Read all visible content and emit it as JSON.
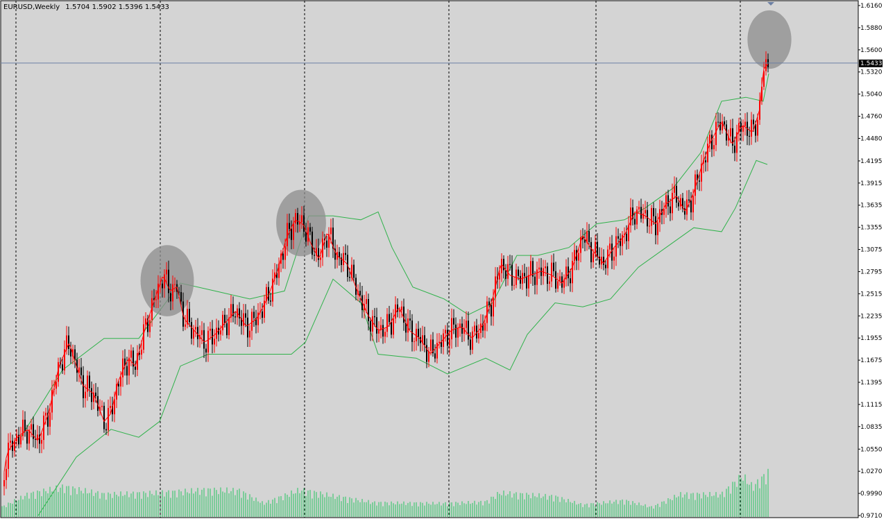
{
  "header": {
    "symbol": "EURUSD,Weekly",
    "ohlc": "1.5704 1.5902 1.5396 1.5433"
  },
  "colors": {
    "background": "#d4d4d4",
    "grid": "#000000",
    "bull": "#ff0000",
    "bear": "#000000",
    "ma": "#ff0000",
    "bands": "#2fb24a",
    "volume": "#22c55e",
    "current_line": "#6b7fa3",
    "highlight": "#8e8e8e"
  },
  "chart_data": {
    "type": "candlestick",
    "title": "EURUSD,Weekly",
    "current_price": 1.5433,
    "current_price_label": "1.5433",
    "ylim": [
      0.971,
      1.616
    ],
    "price_axis_labels": [
      "1.6160",
      "1.5880",
      "1.5600",
      "1.5320",
      "1.5040",
      "1.4760",
      "1.4480",
      "1.4195",
      "1.3915",
      "1.3635",
      "1.3355",
      "1.3075",
      "1.2795",
      "1.2515",
      "1.2235",
      "1.1955",
      "1.1675",
      "1.1395",
      "1.1115",
      "1.0835",
      "1.0550",
      "1.0270",
      "0.9990",
      "0.9710"
    ],
    "close_path": [
      [
        0,
        0.99
      ],
      [
        10,
        1.05
      ],
      [
        25,
        1.07
      ],
      [
        40,
        1.08
      ],
      [
        55,
        1.065
      ],
      [
        70,
        1.1
      ],
      [
        85,
        1.16
      ],
      [
        100,
        1.19
      ],
      [
        110,
        1.16
      ],
      [
        120,
        1.135
      ],
      [
        135,
        1.125
      ],
      [
        150,
        1.09
      ],
      [
        160,
        1.1
      ],
      [
        170,
        1.14
      ],
      [
        185,
        1.17
      ],
      [
        195,
        1.16
      ],
      [
        210,
        1.21
      ],
      [
        225,
        1.25
      ],
      [
        235,
        1.275
      ],
      [
        245,
        1.255
      ],
      [
        255,
        1.26
      ],
      [
        265,
        1.22
      ],
      [
        280,
        1.205
      ],
      [
        295,
        1.19
      ],
      [
        310,
        1.2
      ],
      [
        325,
        1.215
      ],
      [
        340,
        1.23
      ],
      [
        355,
        1.21
      ],
      [
        370,
        1.22
      ],
      [
        385,
        1.245
      ],
      [
        400,
        1.28
      ],
      [
        412,
        1.32
      ],
      [
        425,
        1.345
      ],
      [
        437,
        1.34
      ],
      [
        448,
        1.315
      ],
      [
        460,
        1.295
      ],
      [
        472,
        1.33
      ],
      [
        485,
        1.3
      ],
      [
        500,
        1.29
      ],
      [
        515,
        1.255
      ],
      [
        530,
        1.225
      ],
      [
        545,
        1.205
      ],
      [
        560,
        1.21
      ],
      [
        575,
        1.235
      ],
      [
        590,
        1.205
      ],
      [
        605,
        1.195
      ],
      [
        620,
        1.175
      ],
      [
        635,
        1.19
      ],
      [
        650,
        1.205
      ],
      [
        665,
        1.21
      ],
      [
        680,
        1.195
      ],
      [
        695,
        1.21
      ],
      [
        710,
        1.245
      ],
      [
        722,
        1.29
      ],
      [
        735,
        1.275
      ],
      [
        750,
        1.27
      ],
      [
        765,
        1.275
      ],
      [
        780,
        1.28
      ],
      [
        795,
        1.275
      ],
      [
        810,
        1.265
      ],
      [
        825,
        1.285
      ],
      [
        840,
        1.325
      ],
      [
        855,
        1.305
      ],
      [
        870,
        1.29
      ],
      [
        885,
        1.31
      ],
      [
        900,
        1.325
      ],
      [
        915,
        1.355
      ],
      [
        930,
        1.35
      ],
      [
        945,
        1.34
      ],
      [
        960,
        1.365
      ],
      [
        975,
        1.375
      ],
      [
        988,
        1.355
      ],
      [
        1000,
        1.38
      ],
      [
        1012,
        1.415
      ],
      [
        1025,
        1.445
      ],
      [
        1040,
        1.47
      ],
      [
        1055,
        1.44
      ],
      [
        1070,
        1.465
      ],
      [
        1085,
        1.455
      ],
      [
        1095,
        1.485
      ],
      [
        1100,
        1.535
      ],
      [
        1108,
        1.543
      ]
    ],
    "candle_x_range": [
      3,
      1108
    ],
    "highlights": [
      {
        "center": [
          241,
          1.268
        ],
        "radius_price": 0.045
      },
      {
        "center": [
          434,
          1.341
        ],
        "radius_price": 0.042
      },
      {
        "center": [
          1109,
          1.573
        ],
        "radius_price": 0.037
      }
    ],
    "upper_band_path": [
      [
        30,
        1.07
      ],
      [
        90,
        1.155
      ],
      [
        150,
        1.195
      ],
      [
        200,
        1.195
      ],
      [
        260,
        1.265
      ],
      [
        310,
        1.255
      ],
      [
        360,
        1.245
      ],
      [
        410,
        1.255
      ],
      [
        445,
        1.35
      ],
      [
        480,
        1.35
      ],
      [
        520,
        1.345
      ],
      [
        545,
        1.355
      ],
      [
        565,
        1.31
      ],
      [
        595,
        1.26
      ],
      [
        640,
        1.245
      ],
      [
        675,
        1.225
      ],
      [
        710,
        1.24
      ],
      [
        745,
        1.3
      ],
      [
        775,
        1.3
      ],
      [
        820,
        1.31
      ],
      [
        860,
        1.34
      ],
      [
        900,
        1.345
      ],
      [
        930,
        1.36
      ],
      [
        970,
        1.385
      ],
      [
        1010,
        1.43
      ],
      [
        1040,
        1.495
      ],
      [
        1075,
        1.5
      ],
      [
        1100,
        1.495
      ],
      [
        1108,
        1.53
      ]
    ],
    "lower_band_path": [
      [
        55,
        0.971
      ],
      [
        110,
        1.045
      ],
      [
        160,
        1.08
      ],
      [
        200,
        1.07
      ],
      [
        230,
        1.09
      ],
      [
        260,
        1.16
      ],
      [
        300,
        1.175
      ],
      [
        360,
        1.175
      ],
      [
        420,
        1.175
      ],
      [
        440,
        1.19
      ],
      [
        480,
        1.27
      ],
      [
        520,
        1.24
      ],
      [
        545,
        1.175
      ],
      [
        600,
        1.17
      ],
      [
        645,
        1.15
      ],
      [
        700,
        1.17
      ],
      [
        735,
        1.155
      ],
      [
        760,
        1.2
      ],
      [
        800,
        1.24
      ],
      [
        840,
        1.235
      ],
      [
        880,
        1.245
      ],
      [
        920,
        1.285
      ],
      [
        960,
        1.31
      ],
      [
        1000,
        1.335
      ],
      [
        1040,
        1.33
      ],
      [
        1060,
        1.36
      ],
      [
        1090,
        1.42
      ],
      [
        1106,
        1.415
      ]
    ],
    "volume_path": [
      [
        0,
        0.12
      ],
      [
        40,
        0.3
      ],
      [
        92,
        0.4
      ],
      [
        150,
        0.3
      ],
      [
        230,
        0.32
      ],
      [
        300,
        0.36
      ],
      [
        345,
        0.35
      ],
      [
        380,
        0.18
      ],
      [
        432,
        0.36
      ],
      [
        480,
        0.28
      ],
      [
        540,
        0.19
      ],
      [
        640,
        0.18
      ],
      [
        700,
        0.2
      ],
      [
        720,
        0.32
      ],
      [
        800,
        0.27
      ],
      [
        840,
        0.16
      ],
      [
        900,
        0.22
      ],
      [
        940,
        0.13
      ],
      [
        980,
        0.3
      ],
      [
        1040,
        0.3
      ],
      [
        1070,
        0.55
      ],
      [
        1085,
        0.4
      ],
      [
        1108,
        0.6
      ]
    ],
    "vertical_grid_x": [
      23,
      231,
      439,
      647,
      859,
      1067
    ],
    "grid": "dashed-vertical",
    "legend": "none"
  }
}
